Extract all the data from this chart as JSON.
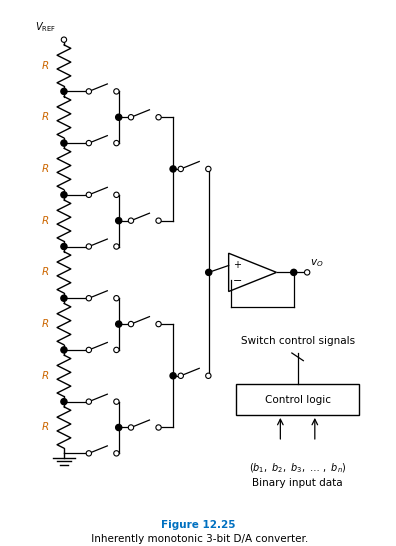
{
  "title": "Figure 12.25  Inherently monotonic 3-bit D/A converter.",
  "title_color": "#0070C0",
  "bg_color": "#ffffff",
  "fig_width": 3.96,
  "fig_height": 5.46,
  "vref_label": "V_REF",
  "r_label": "R",
  "r_color": "#CC6600",
  "vo_label": "v_O",
  "switch_signals_label": "Switch control signals",
  "control_logic_label": "Control logic",
  "binary_label_italic": "(b_1, b_2, b_3, … , b_n)",
  "binary_label": "Binary input data",
  "num_resistors": 8,
  "line_color": "#000000"
}
